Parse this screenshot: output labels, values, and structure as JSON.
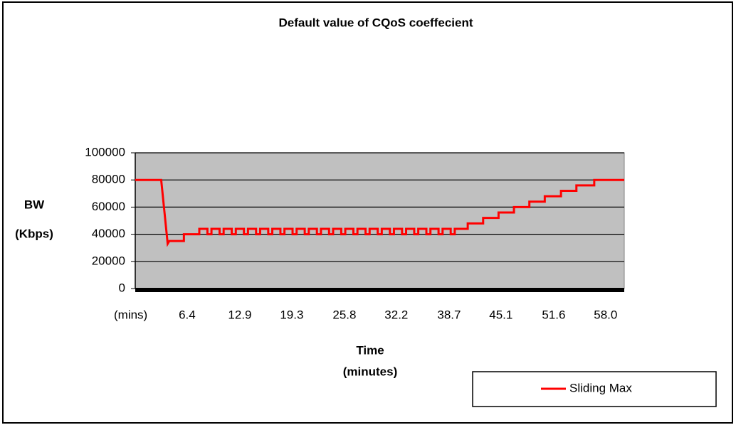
{
  "chart_data": {
    "type": "line",
    "title": "Default value of CQoS coeffecient",
    "y_label": [
      "BW",
      "(Kbps)"
    ],
    "x_label": [
      "Time",
      "(minutes)"
    ],
    "xlim": [
      0,
      60.3
    ],
    "xticks": [
      {
        "value": 0,
        "label": "(mins)"
      },
      6.4,
      12.9,
      19.3,
      25.8,
      32.2,
      38.7,
      45.1,
      51.6,
      {
        "value": 58,
        "label": "58.0"
      }
    ],
    "ylim": [
      0,
      100000
    ],
    "yticks": [
      0,
      20000,
      40000,
      60000,
      80000,
      100000
    ],
    "grid": true,
    "plot_background": "#c0c0c0",
    "legend": "bottom-right",
    "x": [
      0,
      3.2,
      4.0,
      4.2,
      6.0,
      6.0,
      7.9,
      7.9,
      8.9,
      8.9,
      9.4,
      9.4,
      10.4,
      10.4,
      10.9,
      10.9,
      11.9,
      11.9,
      12.4,
      12.4,
      13.4,
      13.4,
      13.9,
      13.9,
      14.9,
      14.9,
      15.4,
      15.4,
      16.4,
      16.4,
      16.9,
      16.9,
      17.9,
      17.9,
      18.4,
      18.4,
      19.4,
      19.4,
      19.9,
      19.9,
      20.9,
      20.9,
      21.4,
      21.4,
      22.4,
      22.4,
      22.9,
      22.9,
      23.9,
      23.9,
      24.4,
      24.4,
      25.4,
      25.4,
      25.9,
      25.9,
      26.9,
      26.9,
      27.4,
      27.4,
      28.4,
      28.4,
      28.9,
      28.9,
      29.9,
      29.9,
      30.4,
      30.4,
      31.4,
      31.4,
      31.9,
      31.9,
      32.9,
      32.9,
      33.4,
      33.4,
      34.4,
      34.4,
      34.9,
      34.9,
      35.9,
      35.9,
      36.4,
      36.4,
      37.4,
      37.4,
      37.9,
      37.9,
      38.9,
      38.9,
      39.4,
      39.4,
      41.0,
      41.0,
      42.9,
      42.9,
      44.8,
      44.8,
      46.7,
      46.7,
      48.6,
      48.6,
      50.5,
      50.5,
      52.5,
      52.5,
      54.4,
      54.4,
      56.6,
      56.6,
      60.3
    ],
    "series": [
      {
        "name": "Sliding Max",
        "color": "#ff0000",
        "values": [
          80000,
          80000,
          33000,
          35000,
          35000,
          40000,
          40000,
          44000,
          44000,
          40000,
          40000,
          44000,
          44000,
          40000,
          40000,
          44000,
          44000,
          40000,
          40000,
          44000,
          44000,
          40000,
          40000,
          44000,
          44000,
          40000,
          40000,
          44000,
          44000,
          40000,
          40000,
          44000,
          44000,
          40000,
          40000,
          44000,
          44000,
          40000,
          40000,
          44000,
          44000,
          40000,
          40000,
          44000,
          44000,
          40000,
          40000,
          44000,
          44000,
          40000,
          40000,
          44000,
          44000,
          40000,
          40000,
          44000,
          44000,
          40000,
          40000,
          44000,
          44000,
          40000,
          40000,
          44000,
          44000,
          40000,
          40000,
          44000,
          44000,
          40000,
          40000,
          44000,
          44000,
          40000,
          40000,
          44000,
          44000,
          40000,
          40000,
          44000,
          44000,
          40000,
          40000,
          44000,
          44000,
          40000,
          40000,
          44000,
          44000,
          40000,
          40000,
          44000,
          44000,
          48000,
          48000,
          52000,
          52000,
          56000,
          56000,
          60000,
          60000,
          64000,
          64000,
          68000,
          68000,
          72000,
          72000,
          76000,
          76000,
          80000,
          80000
        ]
      }
    ]
  }
}
